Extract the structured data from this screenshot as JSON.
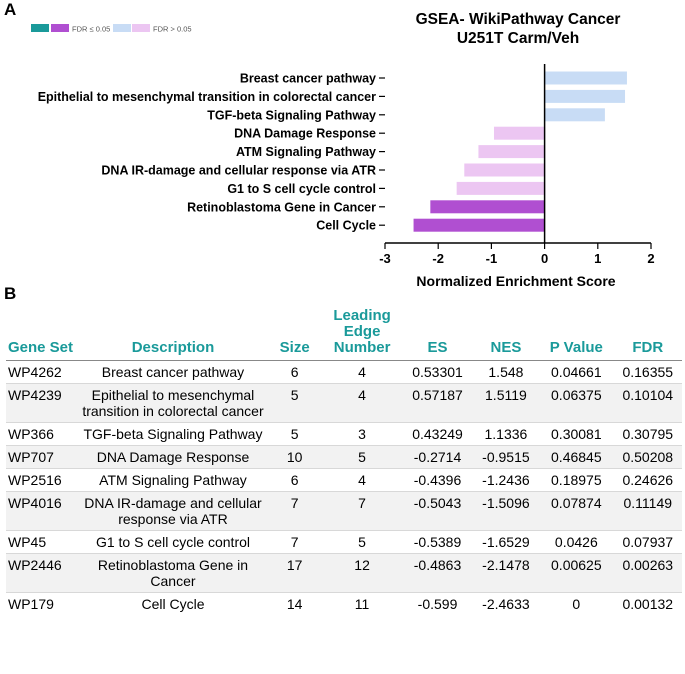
{
  "panels": {
    "a": "A",
    "b": "B"
  },
  "legend": {
    "sig_label": "FDR ≤ 0.05",
    "nonsig_label": "FDR > 0.05",
    "colors": {
      "sig_dark_teal": "#1a9a9a",
      "sig": "#b04fd1",
      "nonsig_pos": "#c8dcf5",
      "nonsig_neg": "#ecc6f2"
    }
  },
  "chart_data": {
    "type": "bar",
    "orientation": "horizontal",
    "title": "GSEA- WikiPathway Cancer",
    "subtitle": "U251T Carm/Veh",
    "xlabel": "Normalized Enrichment Score",
    "xlim": [
      -3,
      2
    ],
    "xticks": [
      "-3",
      "-2",
      "-1",
      "0",
      "1",
      "2"
    ],
    "categories": [
      "Breast cancer pathway",
      "Epithelial to mesenchymal transition in colorectal cancer",
      "TGF-beta Signaling Pathway",
      "DNA Damage Response",
      "ATM Signaling Pathway",
      "DNA IR-damage and cellular response via ATR",
      "G1 to S cell cycle control",
      "Retinoblastoma Gene in Cancer",
      "Cell Cycle"
    ],
    "values": [
      1.548,
      1.5119,
      1.1336,
      -0.9515,
      -1.2436,
      -1.5096,
      -1.6529,
      -2.1478,
      -2.4633
    ],
    "significant": [
      false,
      false,
      false,
      false,
      false,
      false,
      false,
      true,
      true
    ],
    "grid": false,
    "legend_position": "top-left"
  },
  "table": {
    "headers": [
      "Gene Set",
      "Description",
      "Size",
      "Leading Edge Number",
      "ES",
      "NES",
      "P Value",
      "FDR"
    ],
    "rows": [
      [
        "WP4262",
        "Breast cancer pathway",
        "6",
        "4",
        "0.53301",
        "1.548",
        "0.04661",
        "0.16355"
      ],
      [
        "WP4239",
        "Epithelial to mesenchymal transition in colorectal cancer",
        "5",
        "4",
        "0.57187",
        "1.5119",
        "0.06375",
        "0.10104"
      ],
      [
        "WP366",
        "TGF-beta Signaling Pathway",
        "5",
        "3",
        "0.43249",
        "1.1336",
        "0.30081",
        "0.30795"
      ],
      [
        "WP707",
        "DNA Damage Response",
        "10",
        "5",
        "-0.2714",
        "-0.9515",
        "0.46845",
        "0.50208"
      ],
      [
        "WP2516",
        "ATM Signaling Pathway",
        "6",
        "4",
        "-0.4396",
        "-1.2436",
        "0.18975",
        "0.24626"
      ],
      [
        "WP4016",
        "DNA IR-damage and cellular response via ATR",
        "7",
        "7",
        "-0.5043",
        "-1.5096",
        "0.07874",
        "0.11149"
      ],
      [
        "WP45",
        "G1 to S cell cycle control",
        "7",
        "5",
        "-0.5389",
        "-1.6529",
        "0.0426",
        "0.07937"
      ],
      [
        "WP2446",
        "Retinoblastoma Gene in Cancer",
        "17",
        "12",
        "-0.4863",
        "-2.1478",
        "0.00625",
        "0.00263"
      ],
      [
        "WP179",
        "Cell Cycle",
        "14",
        "11",
        "-0.599",
        "-2.4633",
        "0",
        "0.00132"
      ]
    ]
  }
}
